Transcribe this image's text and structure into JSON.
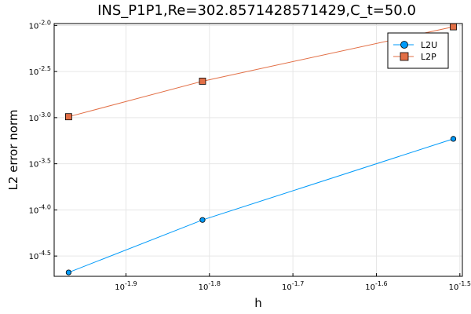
{
  "chart_data": {
    "type": "line",
    "title": "INS_P1P1,Re=302.8571428571429,C_t=50.0",
    "xlabel": "h",
    "ylabel": "L2 error norm",
    "xscale": "log10",
    "yscale": "log10",
    "xlim_log10": [
      -1.986,
      -1.497
    ],
    "ylim_log10": [
      -4.72,
      -1.98
    ],
    "xticks_log10": [
      -1.9,
      -1.8,
      -1.7,
      -1.6,
      -1.5
    ],
    "xtick_labels": [
      "10^-1.9",
      "10^-1.8",
      "10^-1.7",
      "10^-1.6",
      "10^-1.5"
    ],
    "yticks_log10": [
      -4.5,
      -4.0,
      -3.5,
      -3.0,
      -2.5,
      -2.0
    ],
    "ytick_labels": [
      "10^-4.5",
      "10^-4.0",
      "10^-3.5",
      "10^-3.0",
      "10^-2.5",
      "10^-2.0"
    ],
    "grid": true,
    "legend_position": "top-right",
    "series": [
      {
        "name": "L2U",
        "color": "#009af9",
        "marker": "circle",
        "x_log10": [
          -1.9687,
          -1.8083,
          -1.5078
        ],
        "y_log10": [
          -4.678,
          -4.109,
          -3.23
        ]
      },
      {
        "name": "L2P",
        "color": "#e26f46",
        "marker": "square",
        "x_log10": [
          -1.9687,
          -1.8083,
          -1.5078
        ],
        "y_log10": [
          -2.99,
          -2.605,
          -2.015
        ]
      }
    ]
  }
}
